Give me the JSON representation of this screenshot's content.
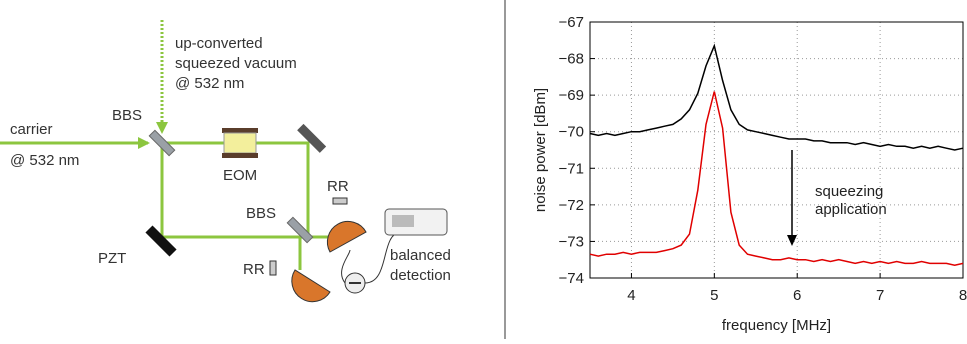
{
  "diagram": {
    "labels": {
      "source_top": [
        "up-converted",
        "squeezed vacuum",
        "@ 532 nm"
      ],
      "carrier": [
        "carrier",
        "@ 532 nm"
      ],
      "bbs1": "BBS",
      "eom": "EOM",
      "bbs2": "BBS",
      "rr1": "RR",
      "rr2": "RR",
      "pzt": "PZT",
      "detection": [
        "balanced",
        "detection"
      ]
    }
  },
  "chart_data": {
    "type": "line",
    "xlabel": "frequency [MHz]",
    "ylabel": "noise power [dBm]",
    "annotation": [
      "squeezing",
      "application"
    ],
    "x": [
      3.5,
      3.6,
      3.7,
      3.8,
      3.9,
      4.0,
      4.1,
      4.2,
      4.3,
      4.4,
      4.5,
      4.6,
      4.7,
      4.8,
      4.9,
      5.0,
      5.1,
      5.2,
      5.3,
      5.4,
      5.5,
      5.6,
      5.7,
      5.8,
      5.9,
      6.0,
      6.1,
      6.2,
      6.3,
      6.4,
      6.5,
      6.6,
      6.7,
      6.8,
      6.9,
      7.0,
      7.1,
      7.2,
      7.3,
      7.4,
      7.5,
      7.6,
      7.7,
      7.8,
      7.9,
      8.0
    ],
    "series": [
      {
        "color": "#000000",
        "values": [
          -70.05,
          -70.1,
          -70.05,
          -70.1,
          -70.05,
          -70.0,
          -70.0,
          -69.95,
          -69.9,
          -69.85,
          -69.8,
          -69.65,
          -69.4,
          -68.95,
          -68.2,
          -67.65,
          -68.6,
          -69.4,
          -69.8,
          -69.95,
          -70.0,
          -70.05,
          -70.1,
          -70.15,
          -70.2,
          -70.2,
          -70.2,
          -70.25,
          -70.25,
          -70.3,
          -70.3,
          -70.3,
          -70.35,
          -70.3,
          -70.35,
          -70.4,
          -70.35,
          -70.4,
          -70.4,
          -70.45,
          -70.4,
          -70.45,
          -70.4,
          -70.45,
          -70.5,
          -70.45
        ]
      },
      {
        "color": "#e00000",
        "values": [
          -73.35,
          -73.4,
          -73.35,
          -73.35,
          -73.3,
          -73.35,
          -73.3,
          -73.3,
          -73.3,
          -73.25,
          -73.2,
          -73.1,
          -72.8,
          -71.6,
          -69.8,
          -68.9,
          -69.9,
          -72.2,
          -73.1,
          -73.35,
          -73.4,
          -73.45,
          -73.5,
          -73.5,
          -73.45,
          -73.5,
          -73.5,
          -73.55,
          -73.5,
          -73.55,
          -73.5,
          -73.55,
          -73.6,
          -73.55,
          -73.6,
          -73.55,
          -73.6,
          -73.55,
          -73.6,
          -73.6,
          -73.55,
          -73.6,
          -73.6,
          -73.6,
          -73.65,
          -73.6
        ]
      }
    ],
    "xlim": [
      3.5,
      8
    ],
    "xticks": [
      4,
      5,
      6,
      7,
      8
    ],
    "ylim": [
      -74,
      -67
    ],
    "yticks": [
      {
        "value": -74,
        "label": "−74"
      },
      {
        "value": -73,
        "label": "−73"
      },
      {
        "value": -72,
        "label": "−72"
      },
      {
        "value": -71,
        "label": "−71"
      },
      {
        "value": -70,
        "label": "−70"
      },
      {
        "value": -69,
        "label": "−69"
      },
      {
        "value": -68,
        "label": "−68"
      },
      {
        "value": -67,
        "label": "−67"
      }
    ],
    "grid": true
  }
}
